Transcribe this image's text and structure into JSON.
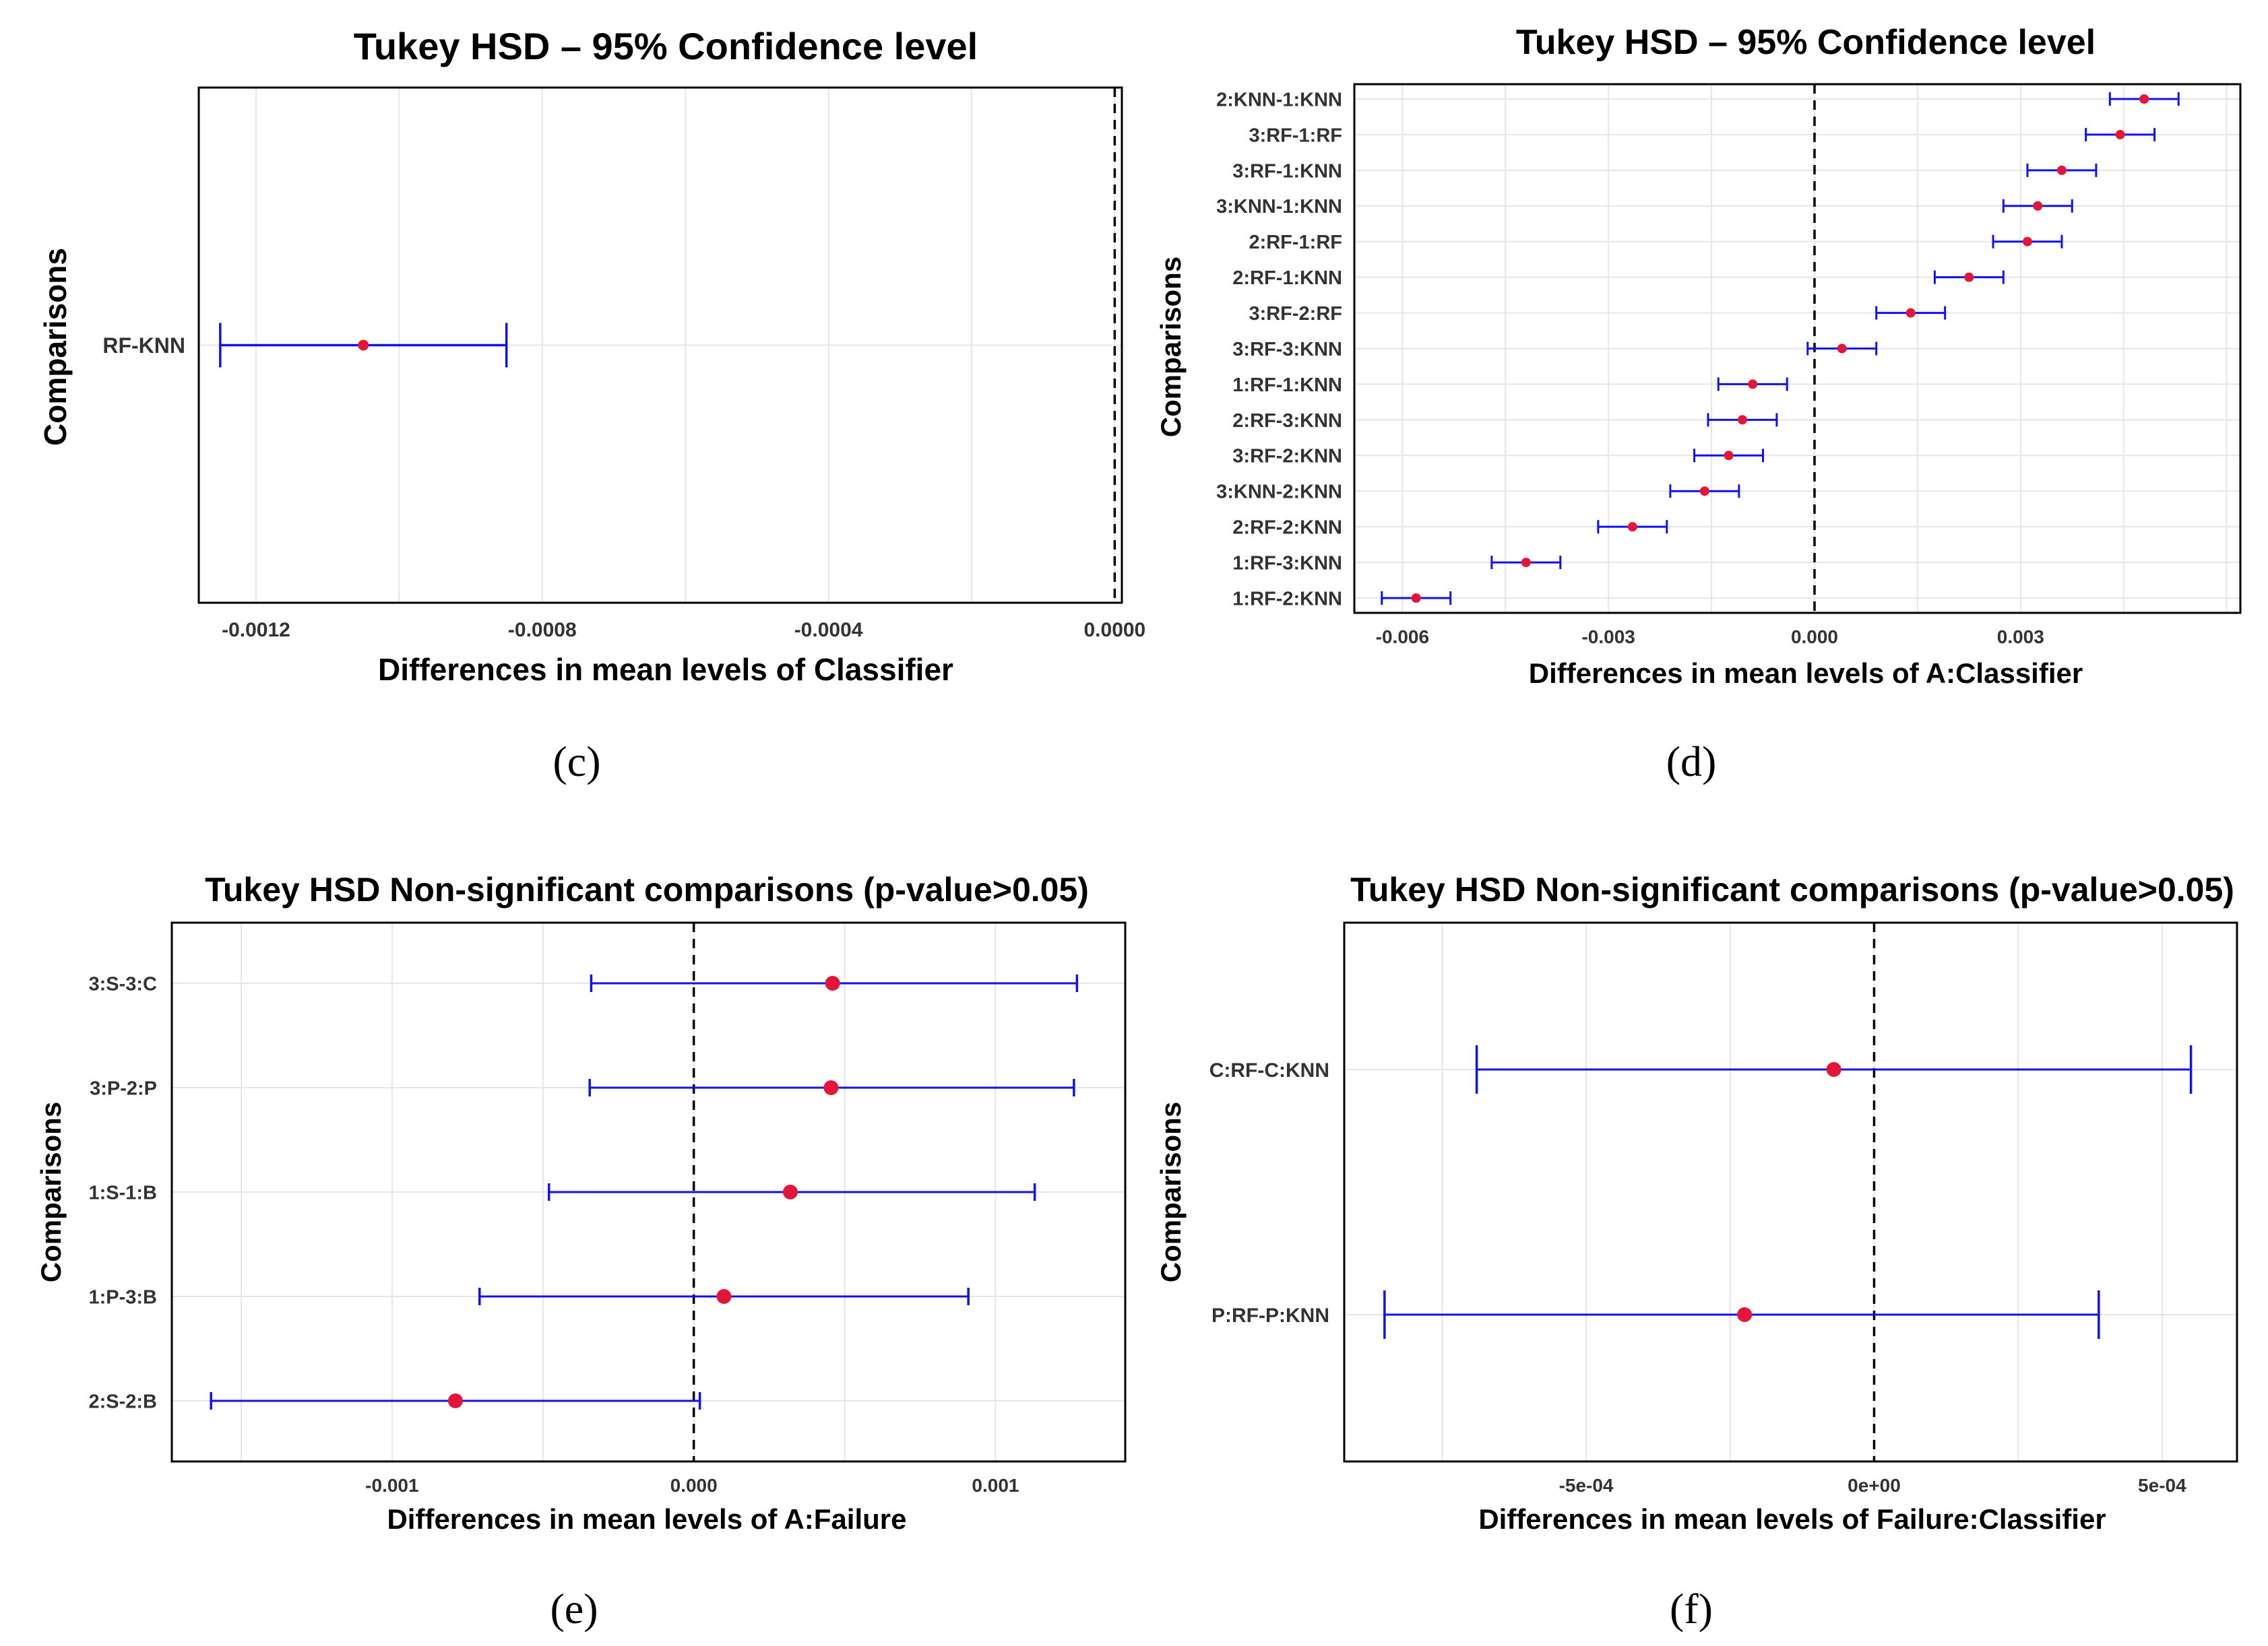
{
  "colors": {
    "interval": "#1010f0",
    "point": "#e3163a",
    "grid": "#e6e6e6",
    "frame": "#000000",
    "reference_line": "#000000"
  },
  "chart_data": [
    {
      "id": "c",
      "type": "errorbar",
      "caption": "(c)",
      "title": "Tukey HSD – 95% Confidence level",
      "xlabel": "Differences in mean levels of Classifier",
      "ylabel": "Comparisons",
      "xlim": [
        -0.00128,
        1e-05
      ],
      "x_ticks": [
        -0.0012,
        -0.0008,
        -0.0004,
        0.0
      ],
      "x_tick_labels": [
        "-0.0012",
        "-0.0008",
        "-0.0004",
        "0.0000"
      ],
      "reference_x": 0,
      "categories": [
        "RF-KNN"
      ],
      "diff": [
        -0.00105
      ],
      "lwr": [
        -0.00125
      ],
      "upr": [
        -0.00085
      ]
    },
    {
      "id": "d",
      "type": "errorbar",
      "caption": "(d)",
      "title": "Tukey HSD – 95% Confidence level",
      "xlabel": "Differences in mean levels of A:Classifier",
      "ylabel": "Comparisons",
      "xlim": [
        -0.0067,
        0.0062
      ],
      "x_ticks": [
        -0.006,
        -0.003,
        0.0,
        0.003
      ],
      "x_tick_labels": [
        "-0.006",
        "-0.003",
        "0.000",
        "0.003"
      ],
      "reference_x": 0,
      "categories": [
        "2:KNN-1:KNN",
        "3:RF-1:RF",
        "3:RF-1:KNN",
        "3:KNN-1:KNN",
        "2:RF-1:RF",
        "2:RF-1:KNN",
        "3:RF-2:RF",
        "3:RF-3:KNN",
        "1:RF-1:KNN",
        "2:RF-3:KNN",
        "3:RF-2:KNN",
        "3:KNN-2:KNN",
        "2:RF-2:KNN",
        "1:RF-3:KNN",
        "1:RF-2:KNN"
      ],
      "diff": [
        0.0048,
        0.00445,
        0.0036,
        0.00325,
        0.0031,
        0.00225,
        0.0014,
        0.0004,
        -0.0009,
        -0.00105,
        -0.00125,
        -0.0016,
        -0.00265,
        -0.0042,
        -0.0058
      ],
      "lwr": [
        0.0043,
        0.00395,
        0.0031,
        0.00275,
        0.0026,
        0.00175,
        0.0009,
        -0.0001,
        -0.0014,
        -0.00155,
        -0.00175,
        -0.0021,
        -0.00315,
        -0.0047,
        -0.0063
      ],
      "upr": [
        0.0053,
        0.00495,
        0.0041,
        0.00375,
        0.0036,
        0.00275,
        0.0019,
        0.0009,
        -0.0004,
        -0.00055,
        -0.00075,
        -0.0011,
        -0.00215,
        -0.0037,
        -0.0053
      ]
    },
    {
      "id": "e",
      "type": "errorbar",
      "caption": "(e)",
      "title": "Tukey HSD Non-significant comparisons (p-value>0.05)",
      "xlabel": "Differences in mean levels of A:Failure",
      "ylabel": "Comparisons",
      "xlim": [
        -0.00173,
        0.00143
      ],
      "x_ticks": [
        -0.001,
        0.0,
        0.001
      ],
      "x_tick_labels": [
        "-0.001",
        "0.000",
        "0.001"
      ],
      "reference_x": 0,
      "categories": [
        "3:S-3:C",
        "3:P-2:P",
        "1:S-1:B",
        "1:P-3:B",
        "2:S-2:B"
      ],
      "diff": [
        0.00046,
        0.000455,
        0.00032,
        0.0001,
        -0.00079
      ],
      "lwr": [
        -0.00034,
        -0.000345,
        -0.00048,
        -0.00071,
        -0.0016
      ],
      "upr": [
        0.00127,
        0.00126,
        0.00113,
        0.00091,
        2e-05
      ]
    },
    {
      "id": "f",
      "type": "errorbar",
      "caption": "(f)",
      "title": "Tukey HSD Non-significant comparisons (p-value>0.05)",
      "xlabel": "Differences in mean levels of Failure:Classifier",
      "ylabel": "Comparisons",
      "xlim": [
        -0.00092,
        0.00063
      ],
      "x_ticks": [
        -0.0005,
        0.0,
        0.0005
      ],
      "x_tick_labels": [
        "-5e-04",
        "0e+00",
        "5e-04"
      ],
      "reference_x": 0,
      "categories": [
        "C:RF-C:KNN",
        "P:RF-P:KNN"
      ],
      "diff": [
        -7e-05,
        -0.000225
      ],
      "lwr": [
        -0.00069,
        -0.00085
      ],
      "upr": [
        0.00055,
        0.00039
      ]
    }
  ]
}
